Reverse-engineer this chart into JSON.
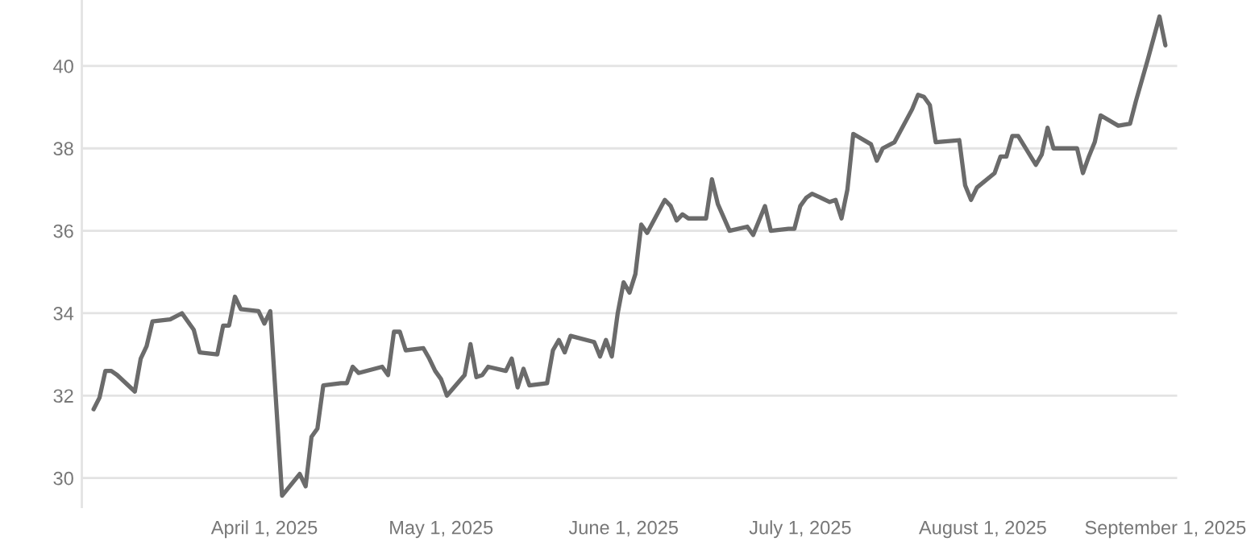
{
  "chart_data": {
    "type": "line",
    "x": [
      "2025-03-03",
      "2025-03-04",
      "2025-03-05",
      "2025-03-06",
      "2025-03-07",
      "2025-03-10",
      "2025-03-11",
      "2025-03-12",
      "2025-03-13",
      "2025-03-16",
      "2025-03-18",
      "2025-03-20",
      "2025-03-21",
      "2025-03-24",
      "2025-03-25",
      "2025-03-26",
      "2025-03-27",
      "2025-03-28",
      "2025-03-31",
      "2025-04-01",
      "2025-04-02",
      "2025-04-04",
      "2025-04-07",
      "2025-04-08",
      "2025-04-09",
      "2025-04-10",
      "2025-04-11",
      "2025-04-14",
      "2025-04-15",
      "2025-04-16",
      "2025-04-17",
      "2025-04-21",
      "2025-04-22",
      "2025-04-23",
      "2025-04-24",
      "2025-04-25",
      "2025-04-28",
      "2025-04-29",
      "2025-04-30",
      "2025-05-01",
      "2025-05-02",
      "2025-05-05",
      "2025-05-06",
      "2025-05-07",
      "2025-05-08",
      "2025-05-09",
      "2025-05-12",
      "2025-05-13",
      "2025-05-14",
      "2025-05-15",
      "2025-05-16",
      "2025-05-19",
      "2025-05-20",
      "2025-05-21",
      "2025-05-22",
      "2025-05-23",
      "2025-05-27",
      "2025-05-28",
      "2025-05-29",
      "2025-05-30",
      "2025-05-31",
      "2025-06-01",
      "2025-06-02",
      "2025-06-03",
      "2025-06-04",
      "2025-06-05",
      "2025-06-08",
      "2025-06-09",
      "2025-06-10",
      "2025-06-11",
      "2025-06-12",
      "2025-06-15",
      "2025-06-16",
      "2025-06-17",
      "2025-06-19",
      "2025-06-22",
      "2025-06-23",
      "2025-06-25",
      "2025-06-26",
      "2025-06-29",
      "2025-06-30",
      "2025-07-01",
      "2025-07-02",
      "2025-07-03",
      "2025-07-06",
      "2025-07-07",
      "2025-07-08",
      "2025-07-09",
      "2025-07-10",
      "2025-07-13",
      "2025-07-14",
      "2025-07-15",
      "2025-07-17",
      "2025-07-20",
      "2025-07-21",
      "2025-07-22",
      "2025-07-23",
      "2025-07-24",
      "2025-07-28",
      "2025-07-29",
      "2025-07-30",
      "2025-07-31",
      "2025-08-03",
      "2025-08-04",
      "2025-08-05",
      "2025-08-06",
      "2025-08-07",
      "2025-08-10",
      "2025-08-11",
      "2025-08-12",
      "2025-08-13",
      "2025-08-17",
      "2025-08-18",
      "2025-08-19",
      "2025-08-20",
      "2025-08-21",
      "2025-08-24",
      "2025-08-26",
      "2025-08-27",
      "2025-08-29",
      "2025-08-31",
      "2025-09-01"
    ],
    "series": [
      {
        "color": "#6b6b6b",
        "values": [
          31.67,
          31.95,
          32.6,
          32.6,
          32.5,
          32.1,
          32.9,
          33.2,
          33.8,
          33.85,
          34.0,
          33.6,
          33.05,
          33.0,
          33.7,
          33.7,
          34.4,
          34.1,
          34.05,
          33.75,
          34.05,
          29.57,
          30.1,
          29.8,
          31.0,
          31.2,
          32.25,
          32.3,
          32.3,
          32.7,
          32.55,
          32.7,
          32.5,
          33.55,
          33.55,
          33.1,
          33.15,
          32.9,
          32.6,
          32.4,
          32.0,
          32.5,
          33.25,
          32.45,
          32.5,
          32.7,
          32.6,
          32.9,
          32.2,
          32.65,
          32.25,
          32.3,
          33.1,
          33.35,
          33.05,
          33.45,
          33.3,
          32.95,
          33.35,
          32.95,
          34.0,
          34.75,
          34.5,
          34.95,
          36.15,
          35.95,
          36.75,
          36.6,
          36.25,
          36.4,
          36.3,
          36.3,
          37.25,
          36.65,
          36.0,
          36.1,
          35.9,
          36.6,
          36.0,
          36.05,
          36.05,
          36.6,
          36.8,
          36.9,
          36.7,
          36.75,
          36.3,
          37.0,
          38.35,
          38.1,
          37.7,
          38.0,
          38.15,
          38.95,
          39.3,
          39.25,
          39.05,
          38.15,
          38.2,
          37.1,
          36.75,
          37.05,
          37.4,
          37.8,
          37.8,
          38.3,
          38.3,
          37.6,
          37.85,
          38.5,
          38.0,
          38.0,
          37.4,
          37.8,
          38.15,
          38.8,
          38.55,
          38.6,
          39.15,
          40.15,
          41.2,
          40.5
        ]
      }
    ],
    "xlim": [
      "2025-03-01",
      "2025-09-03"
    ],
    "xticks": [
      {
        "value": "2025-04-01",
        "label": "April 1, 2025"
      },
      {
        "value": "2025-05-01",
        "label": "May 1, 2025"
      },
      {
        "value": "2025-06-01",
        "label": "June 1, 2025"
      },
      {
        "value": "2025-07-01",
        "label": "July 1, 2025"
      },
      {
        "value": "2025-08-01",
        "label": "August 1, 2025"
      },
      {
        "value": "2025-09-01",
        "label": "September 1, 2025"
      }
    ],
    "ylim": [
      29.3,
      41.6
    ],
    "yticks": [
      30,
      32,
      34,
      36,
      38,
      40
    ],
    "grid": "y",
    "legend": false,
    "line_style": "solid",
    "marker": "none"
  }
}
